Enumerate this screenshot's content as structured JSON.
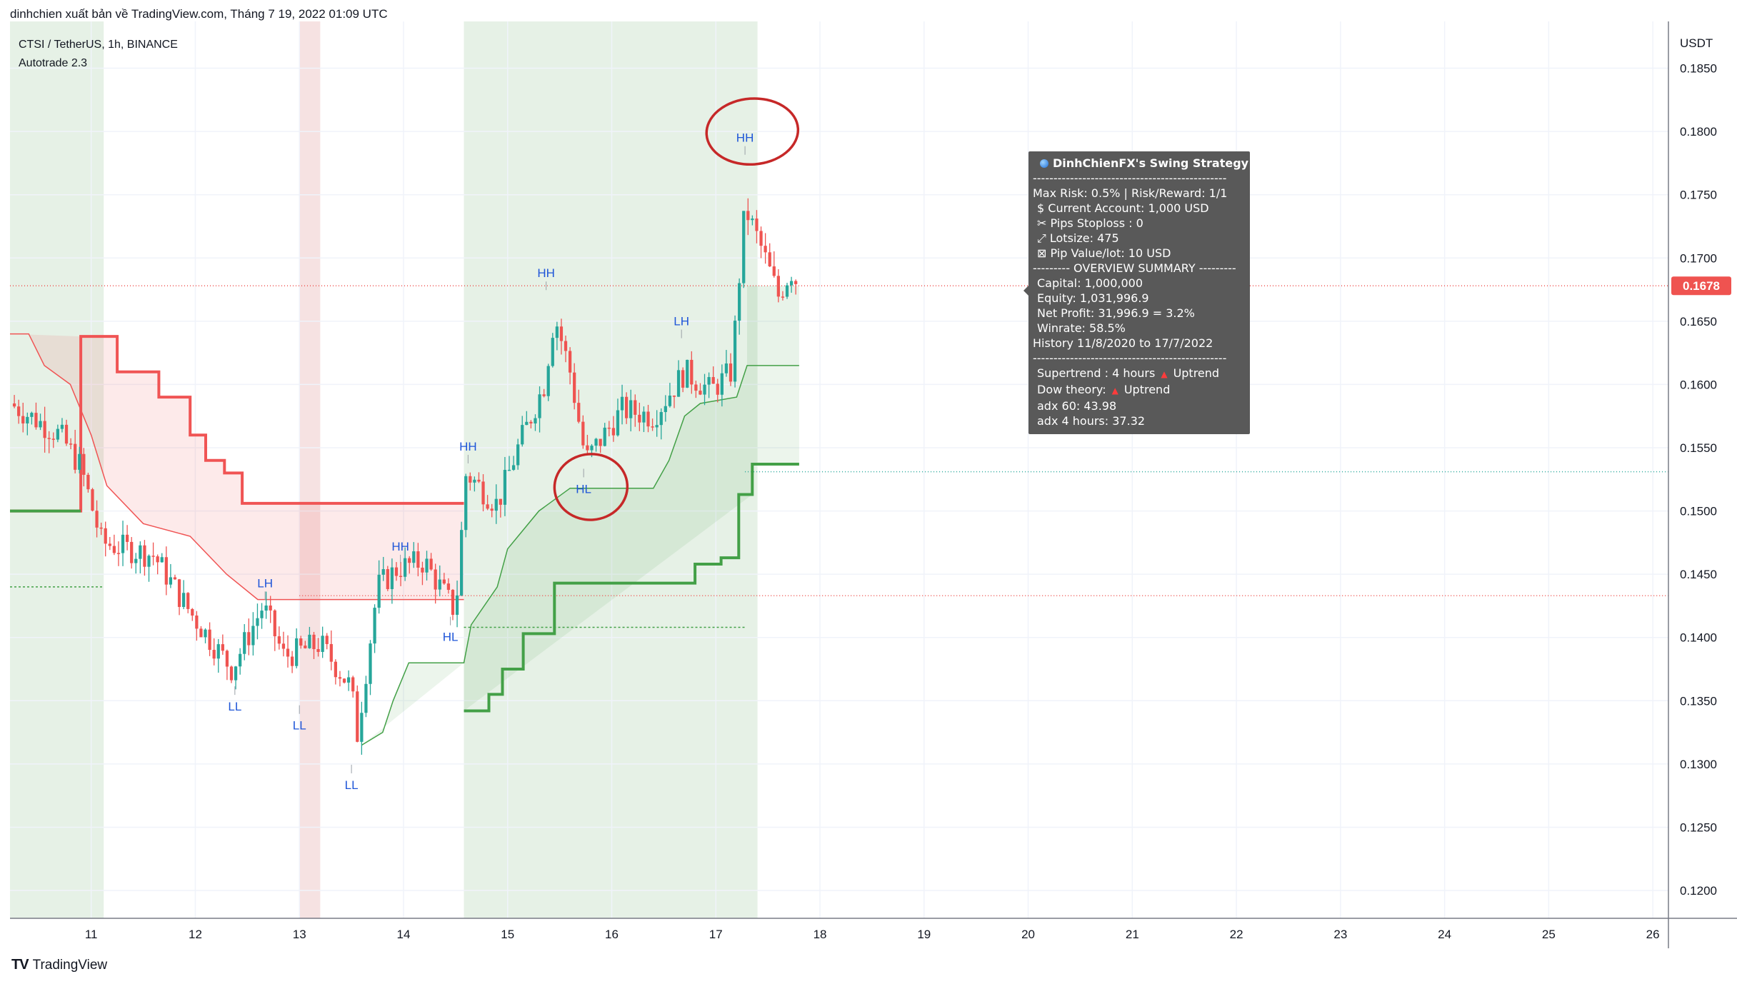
{
  "header": {
    "publisher": "dinhchien xuất bản về TradingView.com, Tháng 7 19, 2022 01:09 UTC"
  },
  "symbol_line": "CTSI / TetherUS, 1h, BINANCE",
  "indicator_name": "Autotrade 2.3",
  "footer": {
    "brand": "TradingView",
    "logo_glyph": "TV"
  },
  "colors": {
    "up": "#26a69a",
    "down": "#ef5350",
    "supertrend_up": "#43a047",
    "supertrend_down": "#f05454",
    "green_zone": "#e6f1e6",
    "red_zone": "#f6e2e2",
    "label": "#1e55d8",
    "annotation": "#c62828",
    "price_badge": "#ef5350"
  },
  "tooltip": {
    "title": "DinhChienFX's Swing Strategy",
    "sep1": "-----------------------------------------------",
    "risk": "Max Risk: 0.5% | Risk/Reward: 1/1",
    "account": "$ Current Account: 1,000 USD",
    "pips": "✂ Pips Stoploss : 0",
    "lotsize": "⤢ Lotsize: 475",
    "pipvalue": "⊠ Pip Value/lot: 10 USD",
    "summary": "--------- OVERVIEW SUMMARY ---------",
    "capital": "Capital: 1,000,000",
    "equity": "Equity: 1,031,996.9",
    "netprofit": "Net Profit: 31,996.9 = 3.2%",
    "winrate": "Winrate: 58.5%",
    "history": "History 11/8/2020 to 17/7/2022",
    "sep2": "-----------------------------------------------",
    "supertrend_label": "Supertrend : 4 hours",
    "supertrend_value": "Uptrend",
    "dow_label": "Dow theory:",
    "dow_value": "Uptrend",
    "adx60": "adx 60: 43.98",
    "adx4h": "adx 4 hours: 37.32",
    "up_arrow": "▲"
  },
  "chart_data": {
    "type": "candlestick",
    "currency": "USDT",
    "last_price": 0.1678,
    "ylim": [
      0.1178,
      0.1887
    ],
    "yticks": [
      0.185,
      0.18,
      0.175,
      0.17,
      0.165,
      0.16,
      0.155,
      0.15,
      0.145,
      0.14,
      0.135,
      0.13,
      0.125,
      0.12
    ],
    "xlim": [
      10.22,
      26.15
    ],
    "xticks": [
      11,
      12,
      13,
      14,
      15,
      16,
      17,
      18,
      19,
      20,
      21,
      22,
      23,
      24,
      25,
      26
    ],
    "candle_interval_days": 0.0417,
    "key_points": [
      [
        10.22,
        0.1585
      ],
      [
        10.7,
        0.156
      ],
      [
        10.9,
        0.1535
      ],
      [
        11.1,
        0.1475
      ],
      [
        11.6,
        0.1465
      ],
      [
        11.95,
        0.142
      ],
      [
        12.35,
        0.1375
      ],
      [
        12.65,
        0.1425
      ],
      [
        12.85,
        0.1385
      ],
      [
        13.2,
        0.1395
      ],
      [
        13.5,
        0.136
      ],
      [
        13.55,
        0.132
      ],
      [
        13.75,
        0.144
      ],
      [
        13.95,
        0.1455
      ],
      [
        14.2,
        0.146
      ],
      [
        14.5,
        0.142
      ],
      [
        14.6,
        0.153
      ],
      [
        14.9,
        0.1505
      ],
      [
        15.1,
        0.155
      ],
      [
        15.35,
        0.16
      ],
      [
        15.45,
        0.1655
      ],
      [
        15.6,
        0.161
      ],
      [
        15.75,
        0.154
      ],
      [
        16.1,
        0.158
      ],
      [
        16.4,
        0.1575
      ],
      [
        16.7,
        0.161
      ],
      [
        16.95,
        0.1595
      ],
      [
        17.15,
        0.161
      ],
      [
        17.28,
        0.174
      ],
      [
        17.45,
        0.1705
      ],
      [
        17.6,
        0.167
      ],
      [
        17.72,
        0.169
      ],
      [
        17.8,
        0.1678
      ]
    ],
    "background_zones": [
      {
        "type": "green",
        "x": [
          10.22,
          11.12
        ]
      },
      {
        "type": "red",
        "x": [
          13.0,
          13.2
        ]
      },
      {
        "type": "green",
        "x": [
          14.58,
          17.4
        ]
      }
    ],
    "supertrend_down_line": [
      [
        10.22,
        0.15
      ],
      [
        10.9,
        0.15
      ],
      [
        10.9,
        0.1638
      ],
      [
        11.25,
        0.1638
      ],
      [
        11.25,
        0.161
      ],
      [
        11.65,
        0.161
      ],
      [
        11.65,
        0.159
      ],
      [
        11.95,
        0.159
      ],
      [
        11.95,
        0.156
      ],
      [
        12.1,
        0.156
      ],
      [
        12.1,
        0.154
      ],
      [
        12.28,
        0.154
      ],
      [
        12.28,
        0.153
      ],
      [
        12.45,
        0.153
      ],
      [
        12.45,
        0.1506
      ],
      [
        14.58,
        0.1506
      ]
    ],
    "supertrend_thin_upper": [
      [
        10.22,
        0.164
      ],
      [
        10.4,
        0.164
      ],
      [
        10.55,
        0.1615
      ],
      [
        10.8,
        0.16
      ],
      [
        11.0,
        0.156
      ],
      [
        11.15,
        0.152
      ],
      [
        11.5,
        0.149
      ],
      [
        11.95,
        0.148
      ],
      [
        12.3,
        0.145
      ],
      [
        12.6,
        0.143
      ],
      [
        14.58,
        0.143
      ]
    ],
    "supertrend_up_thin": [
      [
        13.6,
        0.1315
      ],
      [
        13.8,
        0.1325
      ],
      [
        13.9,
        0.135
      ],
      [
        14.05,
        0.138
      ],
      [
        14.58,
        0.138
      ],
      [
        14.65,
        0.141
      ],
      [
        14.9,
        0.144
      ],
      [
        15.0,
        0.147
      ],
      [
        15.3,
        0.15
      ],
      [
        15.6,
        0.1518
      ],
      [
        16.4,
        0.1518
      ],
      [
        16.55,
        0.154
      ],
      [
        16.7,
        0.1575
      ],
      [
        16.85,
        0.1585
      ],
      [
        17.2,
        0.159
      ],
      [
        17.3,
        0.1615
      ],
      [
        17.8,
        0.1615
      ]
    ],
    "supertrend_up_bold": [
      [
        14.58,
        0.1342
      ],
      [
        14.82,
        0.1342
      ],
      [
        14.82,
        0.1355
      ],
      [
        14.95,
        0.1355
      ],
      [
        14.95,
        0.1375
      ],
      [
        15.15,
        0.1375
      ],
      [
        15.15,
        0.1403
      ],
      [
        15.45,
        0.1403
      ],
      [
        15.45,
        0.1443
      ],
      [
        16.8,
        0.1443
      ],
      [
        16.8,
        0.1458
      ],
      [
        17.05,
        0.1458
      ],
      [
        17.05,
        0.1463
      ],
      [
        17.22,
        0.1463
      ],
      [
        17.22,
        0.1513
      ],
      [
        17.35,
        0.1513
      ],
      [
        17.35,
        0.1537
      ],
      [
        17.8,
        0.1537
      ]
    ],
    "dotted_levels": [
      {
        "y": 0.144,
        "x": [
          10.22,
          11.12
        ],
        "color": "#43a047"
      },
      {
        "y": 0.1408,
        "x": [
          14.58,
          17.28
        ],
        "color": "#43a047"
      },
      {
        "y": 0.1433,
        "x": [
          13.0,
          26.15
        ],
        "color": "#ef5350"
      },
      {
        "y": 0.1531,
        "x": [
          17.28,
          26.15
        ],
        "color": "#26a69a"
      },
      {
        "y": 0.1678,
        "x": [
          10.22,
          26.15
        ],
        "color": "#ef5350"
      }
    ],
    "swing_labels": [
      {
        "text": "HH",
        "x": 17.28,
        "y": 0.1785,
        "pos": "above"
      },
      {
        "text": "HH",
        "x": 15.37,
        "y": 0.1678,
        "pos": "above"
      },
      {
        "text": "LH",
        "x": 16.67,
        "y": 0.164,
        "pos": "above"
      },
      {
        "text": "HH",
        "x": 14.62,
        "y": 0.1541,
        "pos": "above"
      },
      {
        "text": "HL",
        "x": 15.73,
        "y": 0.153,
        "pos": "below"
      },
      {
        "text": "HH",
        "x": 13.97,
        "y": 0.1462,
        "pos": "above"
      },
      {
        "text": "LH",
        "x": 12.67,
        "y": 0.1433,
        "pos": "above"
      },
      {
        "text": "HL",
        "x": 14.45,
        "y": 0.1413,
        "pos": "below"
      },
      {
        "text": "LL",
        "x": 12.38,
        "y": 0.1358,
        "pos": "below"
      },
      {
        "text": "LL",
        "x": 13.0,
        "y": 0.1343,
        "pos": "below"
      },
      {
        "text": "LL",
        "x": 13.5,
        "y": 0.1296,
        "pos": "below"
      }
    ],
    "annotations": [
      {
        "type": "circle",
        "x": 17.35,
        "y": 0.18,
        "rx_days": 0.44,
        "ry_price": 0.0026
      },
      {
        "type": "circle",
        "x": 15.8,
        "y": 0.1519,
        "rx_days": 0.35,
        "ry_price": 0.0026
      }
    ]
  }
}
